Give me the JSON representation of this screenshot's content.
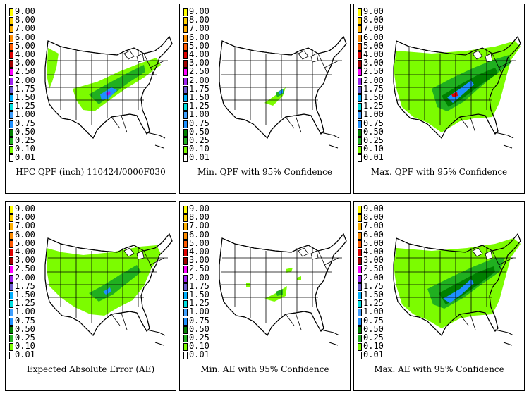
{
  "legend": {
    "levels": [
      {
        "label": "9.00",
        "color": "#ffff00"
      },
      {
        "label": "8.00",
        "color": "#ffd000"
      },
      {
        "label": "7.00",
        "color": "#ffb000"
      },
      {
        "label": "6.00",
        "color": "#ff8c00"
      },
      {
        "label": "5.00",
        "color": "#ff5a00"
      },
      {
        "label": "4.00",
        "color": "#e00000"
      },
      {
        "label": "3.00",
        "color": "#a00000"
      },
      {
        "label": "2.50",
        "color": "#ff00ff"
      },
      {
        "label": "2.00",
        "color": "#a020f0"
      },
      {
        "label": "1.75",
        "color": "#6a5acd"
      },
      {
        "label": "1.50",
        "color": "#00b0ff"
      },
      {
        "label": "1.25",
        "color": "#00e0e0"
      },
      {
        "label": "1.00",
        "color": "#40a0ff"
      },
      {
        "label": "0.75",
        "color": "#1e90ff"
      },
      {
        "label": "0.50",
        "color": "#008000"
      },
      {
        "label": "0.25",
        "color": "#20b020"
      },
      {
        "label": "0.10",
        "color": "#7cfc00"
      },
      {
        "label": "0.01",
        "color": "#ffffff"
      }
    ]
  },
  "panels": [
    {
      "caption": "HPC QPF (inch) 110424/0000F030",
      "intensity": "base"
    },
    {
      "caption": "Min. QPF with 95% Confidence",
      "intensity": "min"
    },
    {
      "caption": "Max. QPF with 95% Confidence",
      "intensity": "max"
    },
    {
      "caption": "Expected Absolute Error (AE)",
      "intensity": "ae"
    },
    {
      "caption": "Min. AE with 95% Confidence",
      "intensity": "aemin"
    },
    {
      "caption": "Max. AE with 95% Confidence",
      "intensity": "aemax"
    }
  ]
}
